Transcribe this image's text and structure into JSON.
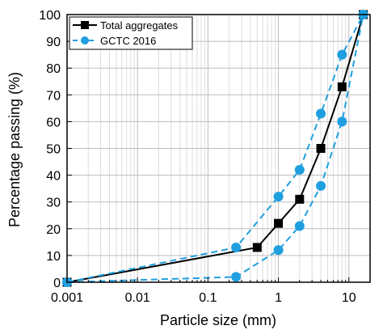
{
  "chart_data": {
    "type": "line",
    "xlabel": "Particle size (mm)",
    "ylabel": "Percentage passing (%)",
    "x_scale": "log",
    "xlim": [
      0.001,
      20
    ],
    "ylim": [
      0,
      100
    ],
    "x_ticks": [
      0.001,
      0.01,
      0.1,
      1,
      10
    ],
    "x_tick_labels": [
      "0.001",
      "0.01",
      "0.1",
      "1",
      "10"
    ],
    "y_ticks": [
      0,
      10,
      20,
      30,
      40,
      50,
      60,
      70,
      80,
      90,
      100
    ],
    "y_tick_labels": [
      "0",
      "10",
      "20",
      "30",
      "40",
      "50",
      "60",
      "70",
      "80",
      "90",
      "100"
    ],
    "grid": true,
    "legend_position": "top-left",
    "legend": [
      {
        "label": "Total aggregates",
        "color": "#000000",
        "line": "solid",
        "marker": "square"
      },
      {
        "label": "GCTC 2016",
        "color": "#1f9fe0",
        "line": "dashed",
        "marker": "circle"
      }
    ],
    "series": [
      {
        "name": "Total aggregates",
        "color": "#000000",
        "x": [
          0.001,
          0.5,
          1,
          2,
          4,
          8,
          16
        ],
        "y": [
          0,
          13,
          22,
          31,
          50,
          73,
          100
        ]
      },
      {
        "name": "GCTC 2016",
        "color": "#1f9fe0",
        "dashed": true,
        "x": [
          0.001,
          0.25,
          1,
          2,
          4,
          8,
          16
        ],
        "y": [
          0,
          13,
          32,
          42,
          63,
          85,
          100
        ]
      },
      {
        "name": "",
        "color": "#1f9fe0",
        "dashed": true,
        "x": [
          0.001,
          0.25,
          1,
          2,
          4,
          8,
          16
        ],
        "y": [
          0,
          2,
          12,
          21,
          36,
          60,
          100
        ]
      }
    ]
  }
}
